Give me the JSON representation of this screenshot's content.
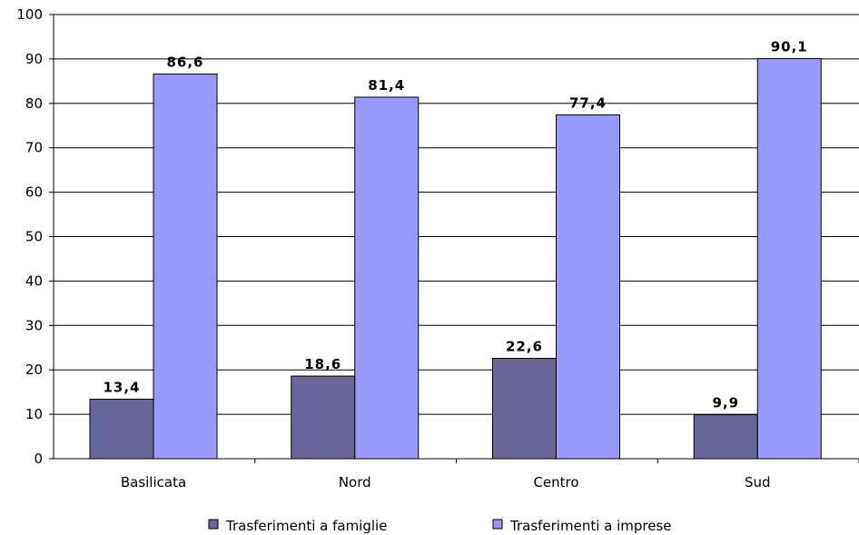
{
  "chart_data": {
    "type": "bar",
    "categories": [
      "Basilicata",
      "Nord",
      "Centro",
      "Sud"
    ],
    "series": [
      {
        "name": "Trasferimenti a famiglie",
        "values": [
          13.4,
          18.6,
          22.6,
          9.9
        ],
        "color": "#666699"
      },
      {
        "name": "Trasferimenti a imprese",
        "values": [
          86.6,
          81.4,
          77.4,
          90.1
        ],
        "color": "#9999ff"
      }
    ],
    "data_labels": [
      [
        "13,4",
        "18,6",
        "22,6",
        "9,9"
      ],
      [
        "86,6",
        "81,4",
        "77,4",
        "90,1"
      ]
    ],
    "yticks": [
      0,
      10,
      20,
      30,
      40,
      50,
      60,
      70,
      80,
      90,
      100
    ],
    "ylim": [
      0,
      100
    ],
    "grid": true,
    "legend_position": "bottom"
  }
}
